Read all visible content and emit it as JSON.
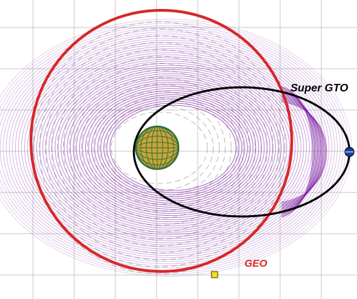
{
  "labels": {
    "super_gto": "Super GTO",
    "geo": "GEO"
  },
  "colors": {
    "background": "#ffffff",
    "grid": "#c9c9c9",
    "geo_orbit": "#d62828",
    "super_gto": "#000000",
    "transfer_spiral": "#7b1fa2",
    "dashed_rings": "#666666",
    "earth_fill": "#c8a43a",
    "earth_grid": "#2f6f3a",
    "satellite_marker": "#1f3f9e",
    "geo_marker": "#f2df20"
  },
  "icons": {
    "earth": "earth-icon",
    "satellite_start": "satellite-marker-icon",
    "geo_end": "geo-marker-icon"
  }
}
